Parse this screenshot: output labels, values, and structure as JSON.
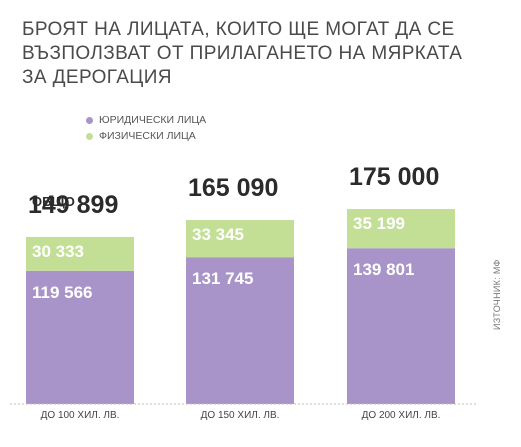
{
  "title": "БРОЯТ НА ЛИЦАТА, КОИТО ЩЕ МОГАТ ДА СЕ ВЪЗПОЛЗВАТ ОТ ПРИЛАГАНЕТО НА МЯРКАТА ЗА ДЕРОГАЦИЯ",
  "source": "ИЗТОЧНИК: МФ",
  "colors": {
    "legal": "#a894c8",
    "physical": "#c3df96",
    "axis": "#bbbbbb",
    "text": "#2b2b2b"
  },
  "chart_data": {
    "type": "bar",
    "stacked": true,
    "title": "БРОЯТ НА ЛИЦАТА, КОИТО ЩЕ МОГАТ ДА СЕ ВЪЗПОЛЗВАТ ОТ ПРИЛАГАНЕТО НА МЯРКАТА ЗА ДЕРОГАЦИЯ",
    "categories": [
      "ДО 100 ХИЛ. ЛВ.",
      "ДО 150 ХИЛ. ЛВ.",
      "ДО 200 ХИЛ. ЛВ."
    ],
    "series": [
      {
        "name": "ЮРИДИЧЕСКИ ЛИЦА",
        "values": [
          119566,
          131745,
          139801
        ],
        "labels": [
          "119 566",
          "131 745",
          "139 801"
        ]
      },
      {
        "name": "ФИЗИЧЕСКИ ЛИЦА",
        "values": [
          30333,
          33345,
          35199
        ],
        "labels": [
          "30 333",
          "33 345",
          "35 199"
        ]
      }
    ],
    "totals": [
      149899,
      165090,
      175000
    ],
    "total_labels": [
      "149 899",
      "165 090",
      "175 000"
    ],
    "total_sublabel": "ОБЩО",
    "legend_position": "top-left",
    "grid": false
  }
}
